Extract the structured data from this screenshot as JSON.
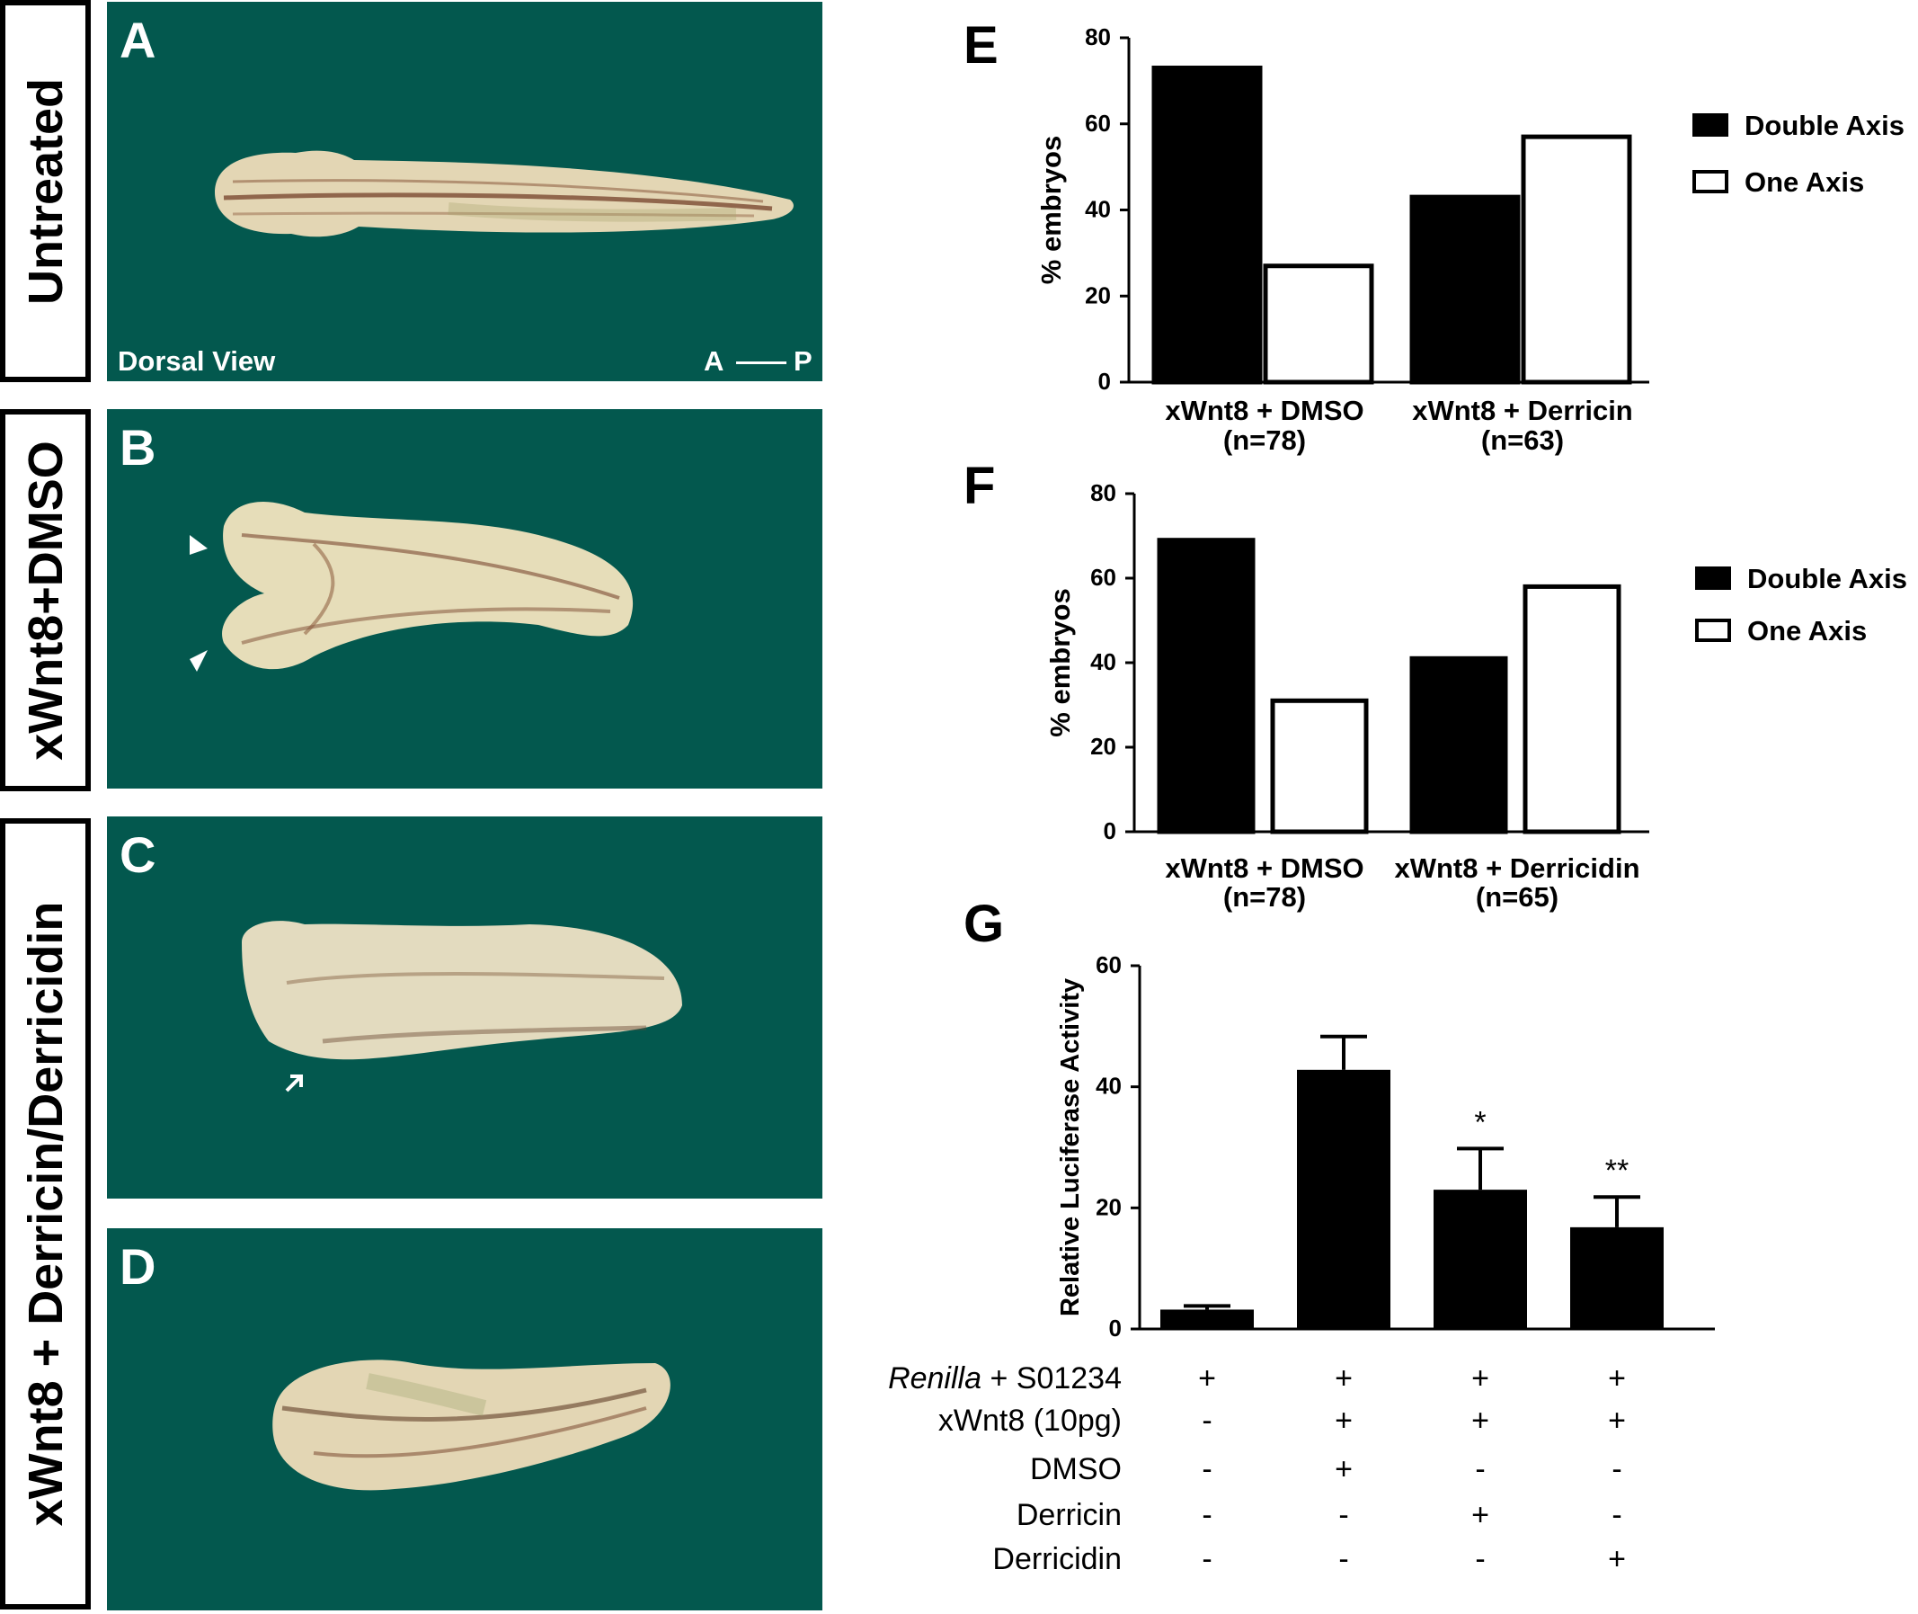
{
  "panels": {
    "row1_label": "Untreated",
    "row2_label": "xWnt8+DMSO",
    "row3_label": "xWnt8 + Derricin/Derricidin",
    "A": {
      "letter": "A",
      "caption_left": "Dorsal View",
      "axis_start": "A",
      "axis_end": "P"
    },
    "B": {
      "letter": "B"
    },
    "C": {
      "letter": "C"
    },
    "D": {
      "letter": "D"
    },
    "background_color": "#03584e"
  },
  "chart_data": [
    {
      "panel": "E",
      "type": "bar",
      "categories": [
        "xWnt8 + DMSO",
        "xWnt8 + Derricin"
      ],
      "category_n": [
        "(n=78)",
        "(n=63)"
      ],
      "series": [
        {
          "name": "Double Axis",
          "values": [
            73,
            43
          ],
          "fill": "#000000"
        },
        {
          "name": "One Axis",
          "values": [
            27,
            57
          ],
          "fill": "#ffffff"
        }
      ],
      "ylabel": "% embryos",
      "ylim": [
        0,
        80
      ],
      "yticks": [
        "0",
        "20",
        "40",
        "60",
        "80"
      ],
      "legend": "right"
    },
    {
      "panel": "F",
      "type": "bar",
      "categories": [
        "xWnt8 + DMSO",
        "xWnt8 + Derricidin"
      ],
      "category_n": [
        "(n=78)",
        "(n=65)"
      ],
      "series": [
        {
          "name": "Double Axis",
          "values": [
            69,
            41
          ],
          "fill": "#000000"
        },
        {
          "name": "One Axis",
          "values": [
            31,
            58
          ],
          "fill": "#ffffff"
        }
      ],
      "ylabel": "% embryos",
      "ylim": [
        0,
        80
      ],
      "yticks": [
        "0",
        "20",
        "40",
        "60",
        "80"
      ],
      "legend": "right"
    },
    {
      "panel": "G",
      "type": "bar",
      "ylabel": "Relative Luciferase Activity",
      "ylim": [
        0,
        60
      ],
      "yticks": [
        "0",
        "20",
        "40",
        "60"
      ],
      "values": [
        3.2,
        42.8,
        23.0,
        16.8
      ],
      "errors": [
        0.6,
        5.5,
        6.8,
        5.0
      ],
      "significance": [
        "",
        "",
        "*",
        "**"
      ],
      "conditions": [
        {
          "label_italic": "Renilla",
          "label_rest": " + S01234",
          "signs": [
            "+",
            "+",
            "+",
            "+"
          ]
        },
        {
          "label_italic": "",
          "label_rest": "xWnt8 (10pg)",
          "signs": [
            "-",
            "+",
            "+",
            "+"
          ]
        },
        {
          "label_italic": "",
          "label_rest": "DMSO",
          "signs": [
            "-",
            "+",
            "-",
            "-"
          ]
        },
        {
          "label_italic": "",
          "label_rest": "Derricin",
          "signs": [
            "-",
            "-",
            "+",
            "-"
          ]
        },
        {
          "label_italic": "",
          "label_rest": "Derricidin",
          "signs": [
            "-",
            "-",
            "-",
            "+"
          ]
        }
      ]
    }
  ]
}
